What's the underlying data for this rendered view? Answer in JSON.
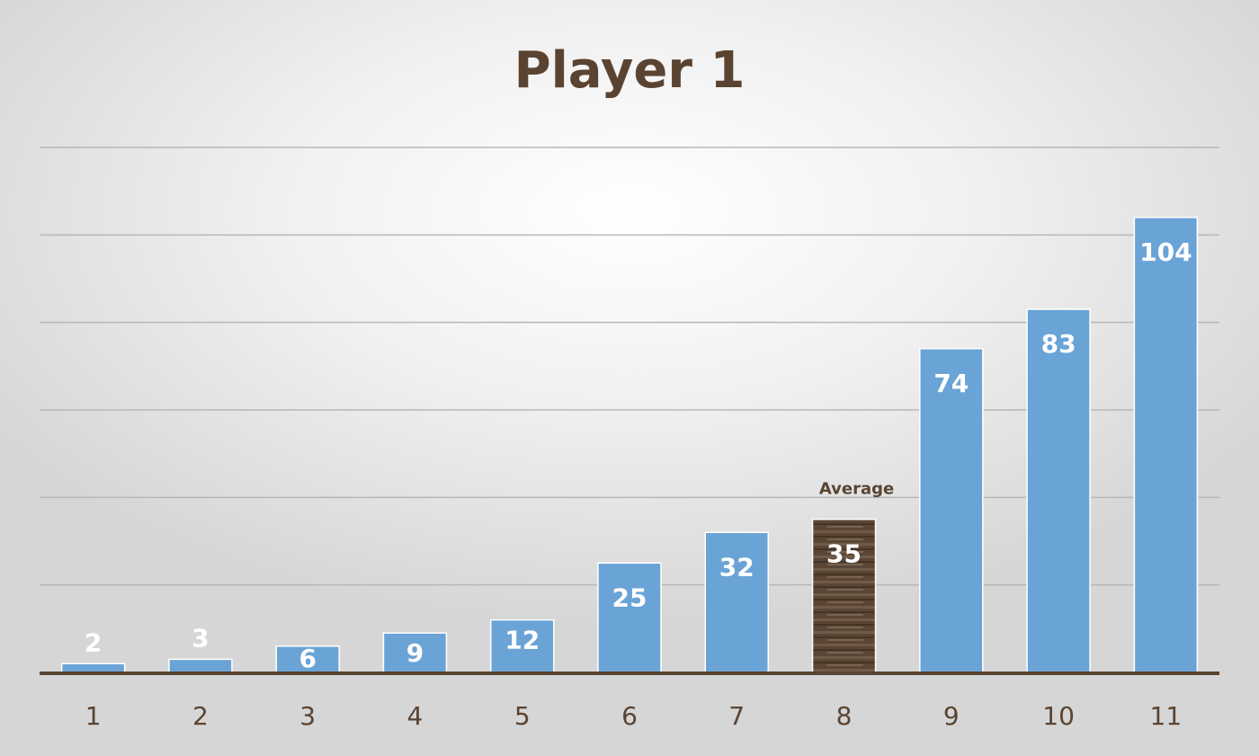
{
  "chart_data": {
    "type": "bar",
    "title": "Player 1",
    "categories": [
      "1",
      "2",
      "3",
      "4",
      "5",
      "6",
      "7",
      "8",
      "9",
      "10",
      "11"
    ],
    "values": [
      2,
      3,
      6,
      9,
      12,
      25,
      32,
      35,
      74,
      83,
      104
    ],
    "value_labels": [
      "2",
      "3",
      "6",
      "9",
      "12",
      "25",
      "32",
      "35",
      "74",
      "83",
      "104"
    ],
    "highlight": {
      "category": "8",
      "annotation": "Average"
    },
    "ylim": [
      0,
      120
    ],
    "gridlines": [
      20,
      40,
      60,
      80,
      100,
      120
    ],
    "grid": true,
    "y_axis_labels_shown": false,
    "colors": {
      "bar": "#6aa3d6",
      "bar_highlight": "#5b4636",
      "title": "#5a4431",
      "axis": "#5a4431",
      "tick_label": "#5a4431",
      "gridline": "#b7b7b7",
      "value_label": "#ffffff"
    }
  }
}
